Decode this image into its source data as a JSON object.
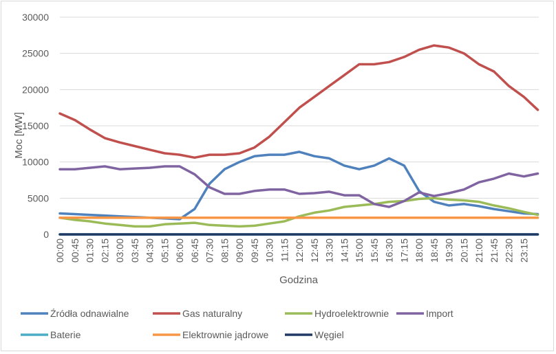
{
  "chart_data": {
    "type": "line",
    "xlabel": "Godzina",
    "ylabel": "Moc [MW]",
    "ylim": [
      0,
      30000
    ],
    "yticks": [
      0,
      5000,
      10000,
      15000,
      20000,
      25000,
      30000
    ],
    "x_tick_labels": [
      "00:00",
      "00:45",
      "01:30",
      "02:15",
      "03:00",
      "03:45",
      "04:30",
      "05:15",
      "06:00",
      "06:45",
      "07:30",
      "08:15",
      "09:00",
      "09:45",
      "10:30",
      "11:15",
      "12:00",
      "12:45",
      "13:30",
      "14:15",
      "15:00",
      "15:45",
      "16:30",
      "17:15",
      "18:00",
      "18:45",
      "19:30",
      "20:15",
      "21:00",
      "21:45",
      "22:30",
      "23:15"
    ],
    "grid": true,
    "legend_position": "bottom",
    "x_hours": [
      0,
      0.75,
      1.5,
      2.25,
      3,
      3.75,
      4.5,
      5.25,
      6,
      6.75,
      7.5,
      8.25,
      9,
      9.75,
      10.5,
      11.25,
      12,
      12.75,
      13.5,
      14.25,
      15,
      15.75,
      16.5,
      17.25,
      18,
      18.75,
      19.5,
      20.25,
      21,
      21.75,
      22.5,
      23.25,
      23.95
    ],
    "series": [
      {
        "name": "Źródła odnawialne",
        "color": "#4f81bd",
        "values": [
          2900,
          2800,
          2700,
          2600,
          2500,
          2400,
          2300,
          2200,
          2100,
          3500,
          7000,
          9000,
          10000,
          10800,
          11000,
          11000,
          11400,
          10800,
          10500,
          9500,
          9000,
          9500,
          10500,
          9500,
          6000,
          4500,
          4000,
          4200,
          3900,
          3500,
          3200,
          2900,
          2800
        ]
      },
      {
        "name": "Gas naturalny",
        "color": "#c0504d",
        "values": [
          16700,
          15800,
          14500,
          13300,
          12700,
          12200,
          11700,
          11200,
          11000,
          10600,
          11000,
          11000,
          11200,
          12000,
          13500,
          15500,
          17500,
          19000,
          20500,
          22000,
          23500,
          23500,
          23800,
          24500,
          25500,
          26100,
          25800,
          25000,
          23500,
          22500,
          20500,
          19000,
          17200
        ]
      },
      {
        "name": "Hydroelektrownie",
        "color": "#9bbb59",
        "values": [
          2300,
          2000,
          1800,
          1500,
          1300,
          1100,
          1100,
          1400,
          1500,
          1600,
          1300,
          1200,
          1100,
          1200,
          1500,
          1800,
          2500,
          3000,
          3300,
          3800,
          4000,
          4200,
          4500,
          4600,
          4900,
          5000,
          4800,
          4700,
          4500,
          4000,
          3600,
          3100,
          2700
        ]
      },
      {
        "name": "Import",
        "color": "#8064a2",
        "values": [
          9000,
          9000,
          9200,
          9400,
          9000,
          9100,
          9200,
          9400,
          9400,
          8300,
          6500,
          5600,
          5600,
          6000,
          6200,
          6200,
          5600,
          5700,
          5900,
          5400,
          5400,
          4200,
          3800,
          4600,
          5800,
          5300,
          5700,
          6200,
          7200,
          7700,
          8400,
          8000,
          8400
        ]
      },
      {
        "name": "Baterie",
        "color": "#4bacc6",
        "values": [
          0,
          0,
          0,
          0,
          0,
          0,
          0,
          0,
          0,
          0,
          0,
          0,
          0,
          0,
          0,
          0,
          0,
          0,
          0,
          0,
          0,
          0,
          0,
          0,
          0,
          0,
          0,
          0,
          0,
          0,
          0,
          0,
          0
        ]
      },
      {
        "name": "Elektrownie jądrowe",
        "color": "#f79646",
        "values": [
          2300,
          2300,
          2300,
          2300,
          2300,
          2300,
          2300,
          2300,
          2300,
          2300,
          2300,
          2300,
          2300,
          2300,
          2300,
          2300,
          2300,
          2300,
          2300,
          2300,
          2300,
          2300,
          2300,
          2300,
          2300,
          2300,
          2300,
          2300,
          2300,
          2300,
          2300,
          2300,
          2300
        ]
      },
      {
        "name": "Węgiel",
        "color": "#1f3864",
        "values": [
          0,
          0,
          0,
          0,
          0,
          0,
          0,
          0,
          0,
          0,
          0,
          0,
          0,
          0,
          0,
          0,
          0,
          0,
          0,
          0,
          0,
          0,
          0,
          0,
          0,
          0,
          0,
          0,
          0,
          0,
          0,
          0,
          0
        ]
      }
    ]
  }
}
